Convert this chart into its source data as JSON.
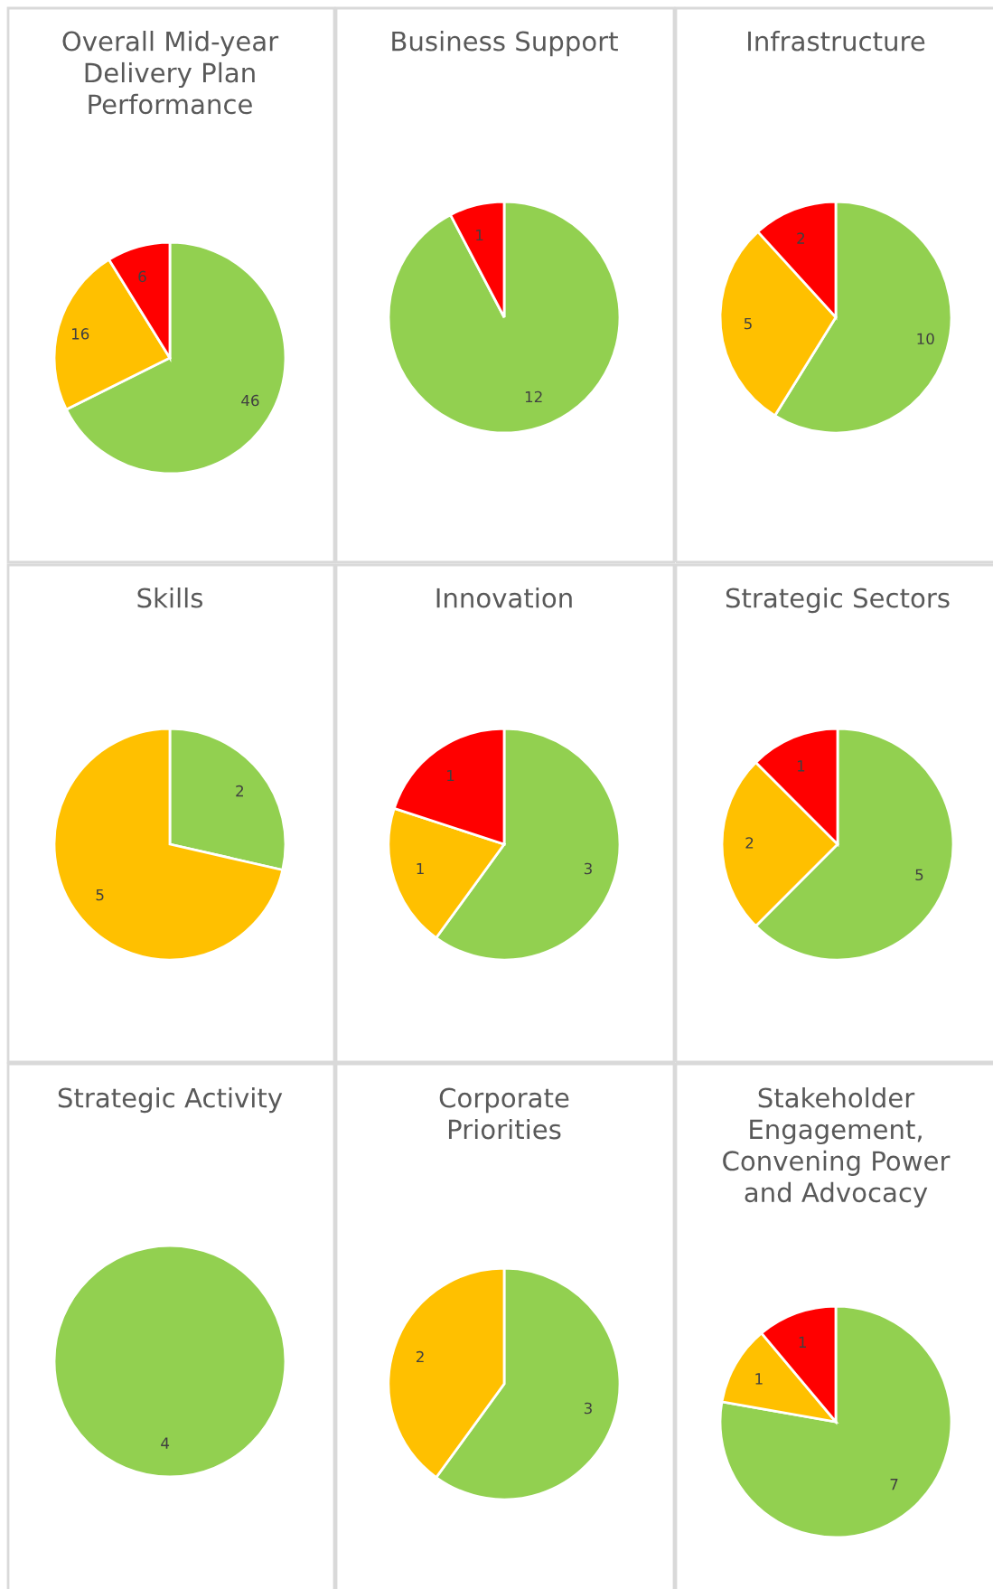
{
  "chart_data": [
    {
      "type": "pie",
      "title": "Overall Mid-year\nDelivery Plan\nPerformance",
      "categories": [
        null,
        null,
        null
      ],
      "values": [
        46,
        16,
        6
      ],
      "colors": [
        "#92d050",
        "#ffc000",
        "#ff0000"
      ],
      "data_labels": true
    },
    {
      "type": "pie",
      "title": "Business Support",
      "categories": [
        null,
        null
      ],
      "values": [
        12,
        1
      ],
      "colors": [
        "#92d050",
        "#ff0000"
      ],
      "data_labels": true
    },
    {
      "type": "pie",
      "title": "Infrastructure",
      "categories": [
        null,
        null,
        null
      ],
      "values": [
        10,
        5,
        2
      ],
      "colors": [
        "#92d050",
        "#ffc000",
        "#ff0000"
      ],
      "data_labels": true
    },
    {
      "type": "pie",
      "title": "Skills",
      "categories": [
        null,
        null
      ],
      "values": [
        2,
        5
      ],
      "colors": [
        "#92d050",
        "#ffc000"
      ],
      "data_labels": true
    },
    {
      "type": "pie",
      "title": "Innovation",
      "categories": [
        null,
        null,
        null
      ],
      "values": [
        3,
        1,
        1
      ],
      "colors": [
        "#92d050",
        "#ffc000",
        "#ff0000"
      ],
      "data_labels": true
    },
    {
      "type": "pie",
      "title": "Strategic Sectors",
      "categories": [
        null,
        null,
        null
      ],
      "values": [
        5,
        2,
        1
      ],
      "colors": [
        "#92d050",
        "#ffc000",
        "#ff0000"
      ],
      "data_labels": true
    },
    {
      "type": "pie",
      "title": "Strategic Activity",
      "categories": [
        null
      ],
      "values": [
        4
      ],
      "colors": [
        "#92d050"
      ],
      "data_labels": true
    },
    {
      "type": "pie",
      "title": "Corporate\nPriorities",
      "categories": [
        null,
        null
      ],
      "values": [
        3,
        2
      ],
      "colors": [
        "#92d050",
        "#ffc000"
      ],
      "data_labels": true
    },
    {
      "type": "pie",
      "title": "Stakeholder\nEngagement,\nConvening Power\nand Advocacy",
      "categories": [
        null,
        null,
        null
      ],
      "values": [
        7,
        1,
        1
      ],
      "colors": [
        "#92d050",
        "#ffc000",
        "#ff0000"
      ],
      "data_labels": true
    }
  ]
}
